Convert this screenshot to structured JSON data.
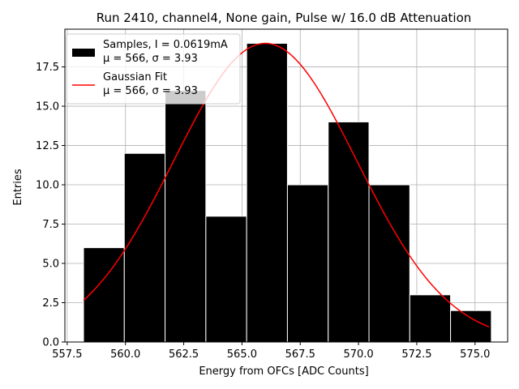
{
  "chart_data": {
    "type": "bar",
    "title": "Run 2410, channel4, None gain, Pulse w/ 16.0 dB Attenuation",
    "xlabel": "Energy from OFCs [ADC Counts]",
    "ylabel": "Entries",
    "xlim": [
      557.4,
      576.4
    ],
    "ylim": [
      0,
      19.9
    ],
    "grid": true,
    "xticks": [
      557.5,
      560.0,
      562.5,
      565.0,
      567.5,
      570.0,
      572.5,
      575.0
    ],
    "xtick_labels": [
      "557.5",
      "560.0",
      "562.5",
      "565.0",
      "567.5",
      "570.0",
      "572.5",
      "575.0"
    ],
    "yticks": [
      0.0,
      2.5,
      5.0,
      7.5,
      10.0,
      12.5,
      15.0,
      17.5
    ],
    "ytick_labels": [
      "0.0",
      "2.5",
      "5.0",
      "7.5",
      "10.0",
      "12.5",
      "15.0",
      "17.5"
    ],
    "bins": [
      {
        "x0": 558.2,
        "x1": 559.95,
        "count": 6
      },
      {
        "x0": 559.95,
        "x1": 561.7,
        "count": 12
      },
      {
        "x0": 561.7,
        "x1": 563.45,
        "count": 16
      },
      {
        "x0": 563.45,
        "x1": 565.2,
        "count": 8
      },
      {
        "x0": 565.2,
        "x1": 566.95,
        "count": 19
      },
      {
        "x0": 566.95,
        "x1": 568.7,
        "count": 10
      },
      {
        "x0": 568.7,
        "x1": 570.45,
        "count": 14
      },
      {
        "x0": 570.45,
        "x1": 572.2,
        "count": 10
      },
      {
        "x0": 572.2,
        "x1": 573.95,
        "count": 3
      },
      {
        "x0": 573.95,
        "x1": 575.7,
        "count": 2
      }
    ],
    "fit": {
      "name": "Gaussian Fit",
      "mu": 566.0,
      "sigma": 3.93,
      "amplitude": 19.0,
      "x_range": [
        558.2,
        575.6
      ],
      "color": "#ff0000"
    },
    "bar_color": "#000000",
    "bar_edge_color": "#ffffff",
    "legend": {
      "position": "upper-left",
      "entries": [
        {
          "line1": "Samples, I = 0.0619mA",
          "line2": "μ = 566, σ = 3.93",
          "marker": "patch",
          "color": "#000000"
        },
        {
          "line1": "Gaussian Fit",
          "line2": "μ = 566, σ = 3.93",
          "marker": "line",
          "color": "#ff0000"
        }
      ]
    }
  }
}
